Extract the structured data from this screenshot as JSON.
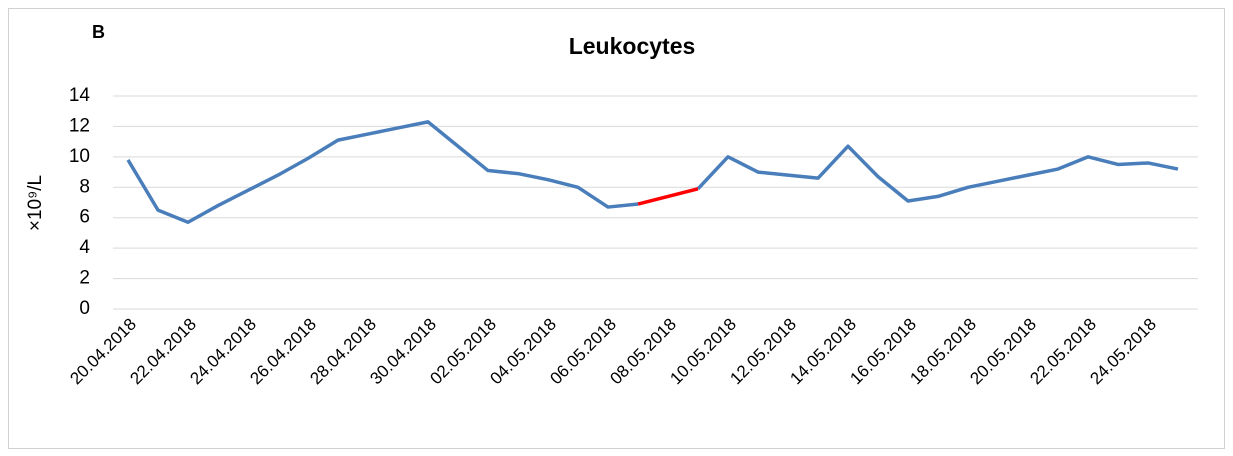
{
  "chart_data": {
    "type": "line",
    "panel_label": "B",
    "title": "Leukocytes",
    "y_label": "×10⁹/L",
    "categories": [
      "20.04.2018",
      null,
      "22.04.2018",
      null,
      "24.04.2018",
      null,
      "26.04.2018",
      null,
      "28.04.2018",
      null,
      "30.04.2018",
      null,
      "02.05.2018",
      null,
      "04.05.2018",
      null,
      "06.05.2018",
      null,
      "08.05.2018",
      null,
      "10.05.2018",
      null,
      "12.05.2018",
      null,
      "14.05.2018",
      null,
      "16.05.2018",
      null,
      "18.05.2018",
      null,
      "20.05.2018",
      null,
      "22.05.2018",
      null,
      "24.05.2018",
      null
    ],
    "series": [
      {
        "color": "#4a7ebb",
        "values": [
          9.8,
          6.5,
          5.7,
          6.8,
          7.8,
          8.8,
          9.9,
          11.1,
          11.5,
          11.9,
          12.3,
          10.7,
          9.1,
          8.9,
          8.5,
          8.0,
          6.7,
          6.9,
          null,
          7.9,
          10.0,
          9.0,
          8.8,
          8.6,
          10.7,
          8.7,
          7.1,
          7.4,
          8.0,
          8.4,
          8.8,
          9.2,
          10.0,
          9.5,
          9.6,
          9.2
        ]
      },
      {
        "color": "#ff0000",
        "values": [
          null,
          null,
          null,
          null,
          null,
          null,
          null,
          null,
          null,
          null,
          null,
          null,
          null,
          null,
          null,
          null,
          null,
          6.9,
          7.4,
          7.9,
          null,
          null,
          null,
          null,
          null,
          null,
          null,
          null,
          null,
          null,
          null,
          null,
          null,
          null,
          null,
          null
        ]
      }
    ],
    "ylim": [
      0,
      14
    ],
    "yticks": [
      0,
      2,
      4,
      6,
      8,
      10,
      12,
      14
    ],
    "grid": true
  }
}
